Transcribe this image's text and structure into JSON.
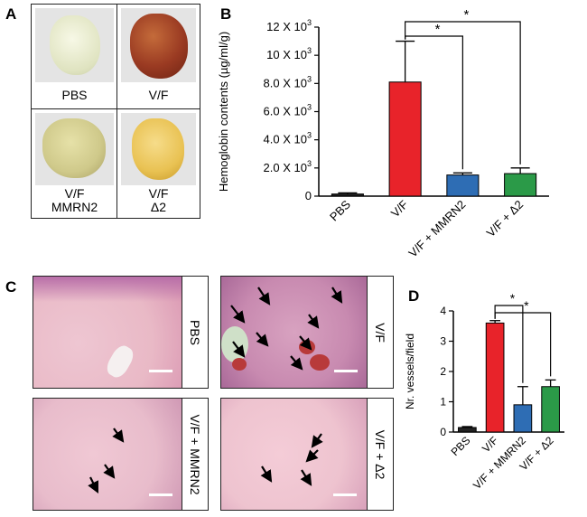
{
  "panels": {
    "a": "A",
    "b": "B",
    "c": "C",
    "d": "D"
  },
  "panel_a": {
    "cells": [
      {
        "label_lines": [
          "PBS"
        ],
        "plug_color": "#e9ecd0"
      },
      {
        "label_lines": [
          "V/F"
        ],
        "plug_color": "#9a3a22"
      },
      {
        "label_lines": [
          "V/F",
          "MMRN2"
        ],
        "plug_color": "#cfc98a"
      },
      {
        "label_lines": [
          "V/F",
          "Δ2"
        ],
        "plug_color": "#e9c253"
      }
    ]
  },
  "panel_c": {
    "cells": [
      {
        "label": "PBS",
        "tone": "#e9b9c6"
      },
      {
        "label": "V/F",
        "tone": "#c88ab0"
      },
      {
        "label": "V/F + MMRN2",
        "tone": "#e8bccb"
      },
      {
        "label": "V/F + Δ2",
        "tone": "#eec3cf"
      }
    ]
  },
  "chart_data": [
    {
      "panel": "B",
      "type": "bar",
      "categories": [
        "PBS",
        "V/F",
        "V/F + MMRN2",
        "V/F + Δ2"
      ],
      "values": [
        150,
        8100,
        1500,
        1600
      ],
      "errors": [
        80,
        2900,
        150,
        400
      ],
      "colors": [
        "#222222",
        "#e8232a",
        "#2e6db4",
        "#2b9a48"
      ],
      "ylabel": "Hemoglobin contents (µg/ml/g)",
      "ylim": [
        0,
        12000
      ],
      "yticks": [
        {
          "value": 0,
          "mantissa": "0",
          "exp": ""
        },
        {
          "value": 2000,
          "mantissa": "2.0 X 10",
          "exp": "3"
        },
        {
          "value": 4000,
          "mantissa": "4.0 X 10",
          "exp": "3"
        },
        {
          "value": 6000,
          "mantissa": "6.0 X 10",
          "exp": "3"
        },
        {
          "value": 8000,
          "mantissa": "8.0 X 10",
          "exp": "3"
        },
        {
          "value": 10000,
          "mantissa": "10 X 10",
          "exp": "3"
        },
        {
          "value": 12000,
          "mantissa": "12 X 10",
          "exp": "3"
        }
      ],
      "significance": [
        {
          "from": 1,
          "to": 2,
          "label": "*"
        },
        {
          "from": 1,
          "to": 3,
          "label": "*"
        }
      ]
    },
    {
      "panel": "D",
      "type": "bar",
      "categories": [
        "PBS",
        "V/F",
        "V/F + MMRN2",
        "V/F + Δ2"
      ],
      "values": [
        0.15,
        3.6,
        0.9,
        1.5
      ],
      "errors": [
        0.03,
        0.08,
        0.6,
        0.22
      ],
      "colors": [
        "#222222",
        "#e8232a",
        "#2e6db4",
        "#2b9a48"
      ],
      "ylabel": "Nr. vessels/field",
      "ylim": [
        0,
        4
      ],
      "yticks": [
        {
          "value": 0,
          "mantissa": "0",
          "exp": ""
        },
        {
          "value": 1,
          "mantissa": "1",
          "exp": ""
        },
        {
          "value": 2,
          "mantissa": "2",
          "exp": ""
        },
        {
          "value": 3,
          "mantissa": "3",
          "exp": ""
        },
        {
          "value": 4,
          "mantissa": "4",
          "exp": ""
        }
      ],
      "significance": [
        {
          "from": 1,
          "to": 2,
          "label": "*"
        },
        {
          "from": 1,
          "to": 3,
          "label": "*"
        }
      ]
    }
  ]
}
